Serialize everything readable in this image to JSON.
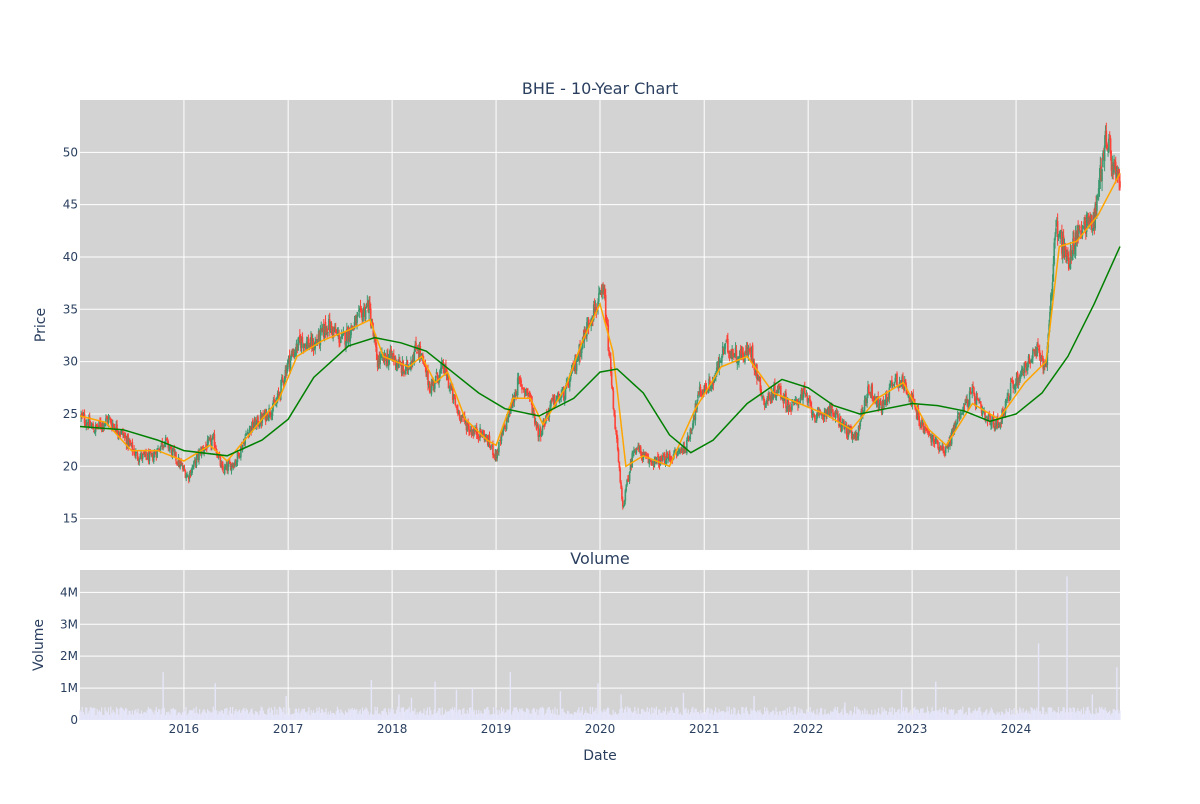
{
  "chart_data": [
    {
      "type": "candlestick",
      "title": "BHE - 10-Year Chart",
      "xlabel": "",
      "ylabel": "Price",
      "xlim": [
        "2015-01-01",
        "2024-12-31"
      ],
      "ylim": [
        12,
        55
      ],
      "yticks": [
        15,
        20,
        25,
        30,
        35,
        40,
        45,
        50
      ],
      "grid": true,
      "up_color": "#3d9970",
      "down_color": "#ff4136",
      "candles_close": [
        [
          "2015-01-05",
          24.8
        ],
        [
          "2015-02-20",
          23.5
        ],
        [
          "2015-04-10",
          24.5
        ],
        [
          "2015-06-01",
          23.0
        ],
        [
          "2015-07-20",
          21.0
        ],
        [
          "2015-09-10",
          20.8
        ],
        [
          "2015-10-25",
          22.5
        ],
        [
          "2015-12-10",
          20.5
        ],
        [
          "2016-01-15",
          19.0
        ],
        [
          "2016-03-01",
          21.5
        ],
        [
          "2016-04-15",
          22.5
        ],
        [
          "2016-05-15",
          19.5
        ],
        [
          "2016-07-01",
          20.5
        ],
        [
          "2016-08-15",
          23.5
        ],
        [
          "2016-10-01",
          24.5
        ],
        [
          "2016-11-20",
          26.0
        ],
        [
          "2017-01-01",
          30.0
        ],
        [
          "2017-02-15",
          32.0
        ],
        [
          "2017-04-01",
          31.5
        ],
        [
          "2017-05-20",
          33.5
        ],
        [
          "2017-07-10",
          32.0
        ],
        [
          "2017-08-20",
          33.5
        ],
        [
          "2017-10-10",
          35.5
        ],
        [
          "2017-11-10",
          30.0
        ],
        [
          "2018-01-01",
          30.5
        ],
        [
          "2018-02-15",
          29.0
        ],
        [
          "2018-04-01",
          31.5
        ],
        [
          "2018-05-15",
          27.5
        ],
        [
          "2018-07-01",
          29.5
        ],
        [
          "2018-08-15",
          25.5
        ],
        [
          "2018-10-01",
          23.5
        ],
        [
          "2018-11-20",
          23.0
        ],
        [
          "2019-01-01",
          21.0
        ],
        [
          "2019-02-15",
          25.0
        ],
        [
          "2019-03-20",
          28.0
        ],
        [
          "2019-04-25",
          27.0
        ],
        [
          "2019-06-01",
          23.0
        ],
        [
          "2019-07-15",
          26.0
        ],
        [
          "2019-09-01",
          27.0
        ],
        [
          "2019-10-15",
          30.5
        ],
        [
          "2019-12-01",
          34.5
        ],
        [
          "2020-01-15",
          36.5
        ],
        [
          "2020-02-20",
          25.0
        ],
        [
          "2020-03-20",
          16.0
        ],
        [
          "2020-05-01",
          22.0
        ],
        [
          "2020-06-15",
          20.5
        ],
        [
          "2020-08-01",
          20.5
        ],
        [
          "2020-09-15",
          21.0
        ],
        [
          "2020-11-01",
          22.0
        ],
        [
          "2020-12-15",
          27.0
        ],
        [
          "2021-02-01",
          28.0
        ],
        [
          "2021-03-15",
          31.5
        ],
        [
          "2021-05-01",
          30.5
        ],
        [
          "2021-06-15",
          31.0
        ],
        [
          "2021-08-01",
          26.0
        ],
        [
          "2021-09-15",
          27.5
        ],
        [
          "2021-11-01",
          25.5
        ],
        [
          "2021-12-15",
          27.0
        ],
        [
          "2022-02-01",
          24.5
        ],
        [
          "2022-03-15",
          25.5
        ],
        [
          "2022-05-01",
          24.0
        ],
        [
          "2022-06-15",
          22.5
        ],
        [
          "2022-08-01",
          27.5
        ],
        [
          "2022-09-15",
          25.5
        ],
        [
          "2022-11-01",
          28.5
        ],
        [
          "2022-12-15",
          27.5
        ],
        [
          "2023-02-01",
          24.0
        ],
        [
          "2023-03-15",
          22.5
        ],
        [
          "2023-05-01",
          21.5
        ],
        [
          "2023-06-15",
          25.0
        ],
        [
          "2023-08-01",
          27.0
        ],
        [
          "2023-09-15",
          24.5
        ],
        [
          "2023-11-01",
          24.0
        ],
        [
          "2023-12-15",
          27.5
        ],
        [
          "2024-02-01",
          29.5
        ],
        [
          "2024-03-15",
          31.0
        ],
        [
          "2024-04-15",
          29.5
        ],
        [
          "2024-05-20",
          43.0
        ],
        [
          "2024-07-01",
          39.5
        ],
        [
          "2024-08-15",
          43.0
        ],
        [
          "2024-10-01",
          43.5
        ],
        [
          "2024-11-10",
          51.5
        ],
        [
          "2024-12-31",
          46.5
        ]
      ],
      "series": [
        {
          "color": "#ffa500",
          "points": [
            [
              "2015-01-01",
              24.8
            ],
            [
              "2015-04-01",
              24.2
            ],
            [
              "2015-07-01",
              21.5
            ],
            [
              "2015-10-01",
              21.5
            ],
            [
              "2016-01-01",
              20.5
            ],
            [
              "2016-04-01",
              22.0
            ],
            [
              "2016-06-01",
              20.5
            ],
            [
              "2016-09-01",
              23.5
            ],
            [
              "2016-12-01",
              26.5
            ],
            [
              "2017-02-01",
              30.5
            ],
            [
              "2017-05-01",
              32.0
            ],
            [
              "2017-08-01",
              33.0
            ],
            [
              "2017-10-15",
              34.0
            ],
            [
              "2017-12-01",
              30.5
            ],
            [
              "2018-03-01",
              29.5
            ],
            [
              "2018-04-15",
              30.5
            ],
            [
              "2018-06-01",
              28.0
            ],
            [
              "2018-07-15",
              29.0
            ],
            [
              "2018-09-15",
              24.5
            ],
            [
              "2018-12-01",
              22.5
            ],
            [
              "2019-01-01",
              22.0
            ],
            [
              "2019-03-01",
              26.5
            ],
            [
              "2019-05-01",
              26.5
            ],
            [
              "2019-06-15",
              24.0
            ],
            [
              "2019-09-01",
              27.5
            ],
            [
              "2019-11-01",
              32.0
            ],
            [
              "2020-01-01",
              35.5
            ],
            [
              "2020-02-15",
              31.0
            ],
            [
              "2020-04-01",
              20.0
            ],
            [
              "2020-06-01",
              21.0
            ],
            [
              "2020-09-01",
              20.0
            ],
            [
              "2020-12-01",
              25.5
            ],
            [
              "2021-03-01",
              29.5
            ],
            [
              "2021-06-01",
              30.5
            ],
            [
              "2021-09-01",
              27.0
            ],
            [
              "2021-12-01",
              26.0
            ],
            [
              "2022-03-01",
              25.0
            ],
            [
              "2022-06-01",
              23.5
            ],
            [
              "2022-09-01",
              26.5
            ],
            [
              "2022-12-01",
              28.0
            ],
            [
              "2023-03-01",
              23.5
            ],
            [
              "2023-05-01",
              22.0
            ],
            [
              "2023-08-01",
              26.0
            ],
            [
              "2023-11-01",
              24.5
            ],
            [
              "2024-02-01",
              28.0
            ],
            [
              "2024-04-15",
              30.0
            ],
            [
              "2024-06-01",
              41.0
            ],
            [
              "2024-08-01",
              41.5
            ],
            [
              "2024-10-15",
              44.0
            ],
            [
              "2024-12-31",
              48.0
            ]
          ]
        },
        {
          "color": "#008000",
          "points": [
            [
              "2015-01-01",
              23.8
            ],
            [
              "2015-06-01",
              23.5
            ],
            [
              "2015-10-01",
              22.5
            ],
            [
              "2016-01-01",
              21.5
            ],
            [
              "2016-06-01",
              21.0
            ],
            [
              "2016-10-01",
              22.5
            ],
            [
              "2017-01-01",
              24.5
            ],
            [
              "2017-04-01",
              28.5
            ],
            [
              "2017-08-01",
              31.5
            ],
            [
              "2017-11-01",
              32.3
            ],
            [
              "2018-02-01",
              31.8
            ],
            [
              "2018-05-01",
              31.0
            ],
            [
              "2018-08-01",
              29.0
            ],
            [
              "2018-11-01",
              27.0
            ],
            [
              "2019-02-01",
              25.5
            ],
            [
              "2019-06-01",
              24.8
            ],
            [
              "2019-10-01",
              26.5
            ],
            [
              "2020-01-01",
              29.0
            ],
            [
              "2020-03-01",
              29.3
            ],
            [
              "2020-06-01",
              27.0
            ],
            [
              "2020-09-01",
              23.0
            ],
            [
              "2020-11-15",
              21.3
            ],
            [
              "2021-02-01",
              22.5
            ],
            [
              "2021-06-01",
              26.0
            ],
            [
              "2021-10-01",
              28.3
            ],
            [
              "2022-01-01",
              27.5
            ],
            [
              "2022-04-01",
              25.8
            ],
            [
              "2022-07-01",
              25.0
            ],
            [
              "2022-10-01",
              25.5
            ],
            [
              "2023-01-01",
              26.0
            ],
            [
              "2023-04-01",
              25.8
            ],
            [
              "2023-07-01",
              25.3
            ],
            [
              "2023-10-01",
              24.3
            ],
            [
              "2024-01-01",
              25.0
            ],
            [
              "2024-04-01",
              27.0
            ],
            [
              "2024-07-01",
              30.5
            ],
            [
              "2024-10-01",
              35.5
            ],
            [
              "2024-12-31",
              41.0
            ]
          ]
        }
      ]
    },
    {
      "type": "bar",
      "title": "Volume",
      "xlabel": "Date",
      "ylabel": "Volume",
      "xlim": [
        "2015-01-01",
        "2024-12-31"
      ],
      "ylim": [
        0,
        4700000
      ],
      "yticks": [
        0,
        1000000,
        2000000,
        3000000,
        4000000
      ],
      "ytick_labels": [
        "0",
        "1M",
        "2M",
        "3M",
        "4M"
      ],
      "xtick_labels": [
        "2016",
        "2017",
        "2018",
        "2019",
        "2020",
        "2021",
        "2022",
        "2023",
        "2024"
      ],
      "bar_color": "#e6e6fa",
      "baseline": 300000,
      "spikes": [
        [
          "2015-10-20",
          1500000
        ],
        [
          "2016-04-20",
          1150000
        ],
        [
          "2016-12-25",
          750000
        ],
        [
          "2017-10-20",
          1250000
        ],
        [
          "2018-01-25",
          800000
        ],
        [
          "2018-03-10",
          700000
        ],
        [
          "2018-06-01",
          1200000
        ],
        [
          "2018-08-15",
          950000
        ],
        [
          "2018-10-10",
          1000000
        ],
        [
          "2019-02-20",
          1500000
        ],
        [
          "2019-08-15",
          900000
        ],
        [
          "2019-12-25",
          1150000
        ],
        [
          "2020-03-15",
          800000
        ],
        [
          "2020-10-20",
          850000
        ],
        [
          "2021-06-25",
          750000
        ],
        [
          "2022-05-10",
          550000
        ],
        [
          "2022-11-25",
          950000
        ],
        [
          "2023-03-25",
          1200000
        ],
        [
          "2024-03-20",
          2400000
        ],
        [
          "2024-06-28",
          4500000
        ],
        [
          "2024-09-25",
          800000
        ],
        [
          "2024-12-20",
          1650000
        ]
      ]
    }
  ]
}
